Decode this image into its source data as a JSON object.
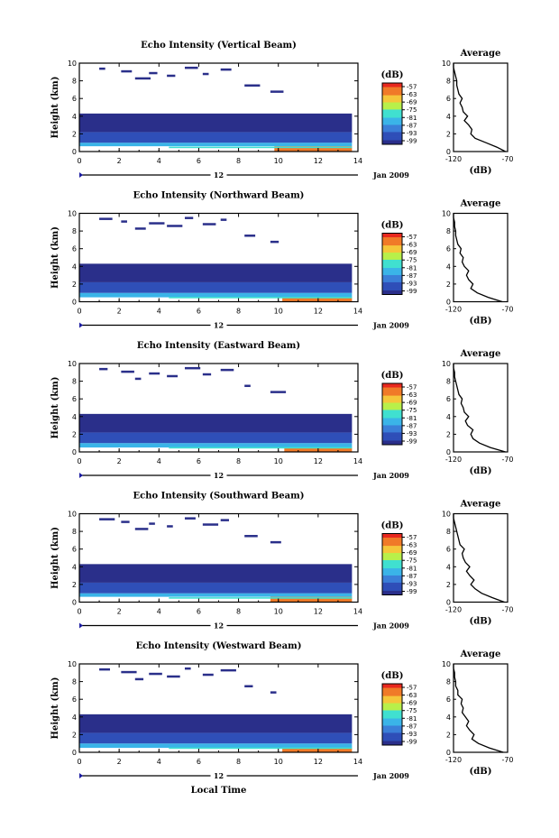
{
  "figure": {
    "xlabel": "Local Time",
    "date_label": "Jan 2009",
    "day_label": "12",
    "cbar_label": "(dB)",
    "avg_title": "Average",
    "avg_xlabel": "(dB)"
  },
  "chart_data": [
    {
      "type": "heatmap",
      "title": "Echo Intensity (Vertical Beam)",
      "ylabel": "Height (km)",
      "xlim": [
        0,
        14
      ],
      "ylim": [
        0,
        10
      ],
      "xticks": [
        0,
        2,
        4,
        6,
        8,
        10,
        12,
        14
      ],
      "yticks": [
        0,
        2,
        4,
        6,
        8,
        10
      ],
      "colorbar": {
        "unit": "dB",
        "ticks": [
          -57,
          -63,
          -69,
          -75,
          -81,
          -87,
          -93,
          -99
        ]
      },
      "layers": [
        {
          "h0": 0.0,
          "h1": 0.6,
          "level": -63,
          "t0": 9.8,
          "t1": 13.7
        },
        {
          "h0": 0.6,
          "h1": 1.0,
          "level": -81,
          "t0": 0,
          "t1": 13.7
        },
        {
          "h0": 1.0,
          "h1": 2.2,
          "level": -93,
          "t0": 0,
          "t1": 13.7
        },
        {
          "h0": 2.2,
          "h1": 4.3,
          "level": -99,
          "t0": 0,
          "t1": 13.7
        }
      ],
      "average": {
        "xlim": [
          -120,
          -70
        ],
        "xticks": [
          -120,
          -70
        ],
        "height": [
          0,
          0.5,
          1,
          1.5,
          2,
          2.5,
          3,
          3.5,
          4,
          4.5,
          5,
          5.5,
          6,
          6.5,
          7,
          7.5,
          8,
          8.5,
          9,
          9.5,
          10
        ],
        "value": [
          -72,
          -80,
          -90,
          -100,
          -104,
          -103,
          -106,
          -110,
          -107,
          -111,
          -112,
          -114,
          -112,
          -115,
          -116,
          -117,
          -117,
          -118,
          -119,
          -120,
          -120
        ]
      }
    },
    {
      "type": "heatmap",
      "title": "Echo Intensity (Northward Beam)",
      "ylabel": "Height (km)",
      "xlim": [
        0,
        14
      ],
      "ylim": [
        0,
        10
      ],
      "xticks": [
        0,
        2,
        4,
        6,
        8,
        10,
        12,
        14
      ],
      "yticks": [
        0,
        2,
        4,
        6,
        8,
        10
      ],
      "colorbar": {
        "unit": "dB",
        "ticks": [
          -57,
          -63,
          -69,
          -75,
          -81,
          -87,
          -93,
          -99
        ]
      },
      "layers": [
        {
          "h0": 0.0,
          "h1": 0.5,
          "level": -63,
          "t0": 10.2,
          "t1": 13.7
        },
        {
          "h0": 0.5,
          "h1": 1.0,
          "level": -81,
          "t0": 0,
          "t1": 13.7
        },
        {
          "h0": 1.0,
          "h1": 2.2,
          "level": -93,
          "t0": 0,
          "t1": 13.7
        },
        {
          "h0": 2.2,
          "h1": 4.3,
          "level": -99,
          "t0": 0,
          "t1": 13.7
        }
      ],
      "average": {
        "xlim": [
          -120,
          -70
        ],
        "xticks": [
          -120,
          -70
        ],
        "height": [
          0,
          0.5,
          1,
          1.5,
          2,
          2.5,
          3,
          3.5,
          4,
          4.5,
          5,
          5.5,
          6,
          6.5,
          7,
          7.5,
          8,
          8.5,
          9,
          9.5,
          10
        ],
        "value": [
          -75,
          -88,
          -98,
          -104,
          -102,
          -106,
          -108,
          -106,
          -110,
          -112,
          -111,
          -114,
          -113,
          -116,
          -117,
          -118,
          -118,
          -119,
          -119,
          -120,
          -120
        ]
      }
    },
    {
      "type": "heatmap",
      "title": "Echo Intensity (Eastward Beam)",
      "ylabel": "Height (km)",
      "xlim": [
        0,
        14
      ],
      "ylim": [
        0,
        10
      ],
      "xticks": [
        0,
        2,
        4,
        6,
        8,
        10,
        12,
        14
      ],
      "yticks": [
        0,
        2,
        4,
        6,
        8,
        10
      ],
      "colorbar": {
        "unit": "dB",
        "ticks": [
          -57,
          -63,
          -69,
          -75,
          -81,
          -87,
          -93,
          -99
        ]
      },
      "layers": [
        {
          "h0": 0.0,
          "h1": 0.5,
          "level": -63,
          "t0": 10.3,
          "t1": 13.7
        },
        {
          "h0": 0.5,
          "h1": 1.0,
          "level": -81,
          "t0": 0,
          "t1": 13.7
        },
        {
          "h0": 1.0,
          "h1": 2.2,
          "level": -93,
          "t0": 0,
          "t1": 13.7
        },
        {
          "h0": 2.2,
          "h1": 4.3,
          "level": -99,
          "t0": 0,
          "t1": 13.7
        }
      ],
      "average": {
        "xlim": [
          -120,
          -70
        ],
        "xticks": [
          -120,
          -70
        ],
        "height": [
          0,
          0.5,
          1,
          1.5,
          2,
          2.5,
          3,
          3.5,
          4,
          4.5,
          5,
          5.5,
          6,
          6.5,
          7,
          7.5,
          8,
          8.5,
          9,
          9.5,
          10
        ],
        "value": [
          -72,
          -86,
          -96,
          -102,
          -104,
          -102,
          -107,
          -109,
          -106,
          -110,
          -111,
          -113,
          -112,
          -115,
          -116,
          -117,
          -118,
          -119,
          -119,
          -120,
          -120
        ]
      }
    },
    {
      "type": "heatmap",
      "title": "Echo Intensity (Southward Beam)",
      "ylabel": "Height (km)",
      "xlim": [
        0,
        14
      ],
      "ylim": [
        0,
        10
      ],
      "xticks": [
        0,
        2,
        4,
        6,
        8,
        10,
        12,
        14
      ],
      "yticks": [
        0,
        2,
        4,
        6,
        8,
        10
      ],
      "colorbar": {
        "unit": "dB",
        "ticks": [
          -57,
          -63,
          -69,
          -75,
          -81,
          -87,
          -93,
          -99
        ]
      },
      "layers": [
        {
          "h0": 0.0,
          "h1": 0.6,
          "level": -63,
          "t0": 9.6,
          "t1": 13.7
        },
        {
          "h0": 0.6,
          "h1": 1.0,
          "level": -81,
          "t0": 0,
          "t1": 13.7
        },
        {
          "h0": 1.0,
          "h1": 2.2,
          "level": -93,
          "t0": 0,
          "t1": 13.7
        },
        {
          "h0": 2.2,
          "h1": 4.3,
          "level": -99,
          "t0": 0,
          "t1": 13.7
        }
      ],
      "average": {
        "xlim": [
          -120,
          -70
        ],
        "xticks": [
          -120,
          -70
        ],
        "height": [
          0,
          0.5,
          1,
          1.5,
          2,
          2.5,
          3,
          3.5,
          4,
          4.5,
          5,
          5.5,
          6,
          6.5,
          7,
          7.5,
          8,
          8.5,
          9,
          9.5,
          10
        ],
        "value": [
          -73,
          -84,
          -94,
          -100,
          -104,
          -101,
          -105,
          -108,
          -105,
          -109,
          -111,
          -112,
          -110,
          -114,
          -115,
          -116,
          -117,
          -118,
          -119,
          -120,
          -120
        ]
      }
    },
    {
      "type": "heatmap",
      "title": "Echo Intensity (Westward Beam)",
      "ylabel": "Height (km)",
      "xlim": [
        0,
        14
      ],
      "ylim": [
        0,
        10
      ],
      "xticks": [
        0,
        2,
        4,
        6,
        8,
        10,
        12,
        14
      ],
      "yticks": [
        0,
        2,
        4,
        6,
        8,
        10
      ],
      "colorbar": {
        "unit": "dB",
        "ticks": [
          -57,
          -63,
          -69,
          -75,
          -81,
          -87,
          -93,
          -99
        ]
      },
      "layers": [
        {
          "h0": 0.0,
          "h1": 0.5,
          "level": -63,
          "t0": 10.2,
          "t1": 13.7
        },
        {
          "h0": 0.5,
          "h1": 1.0,
          "level": -81,
          "t0": 0,
          "t1": 13.7
        },
        {
          "h0": 1.0,
          "h1": 2.2,
          "level": -93,
          "t0": 0,
          "t1": 13.7
        },
        {
          "h0": 2.2,
          "h1": 4.3,
          "level": -99,
          "t0": 0,
          "t1": 13.7
        }
      ],
      "average": {
        "xlim": [
          -120,
          -70
        ],
        "xticks": [
          -120,
          -70
        ],
        "height": [
          0,
          0.5,
          1,
          1.5,
          2,
          2.5,
          3,
          3.5,
          4,
          4.5,
          5,
          5.5,
          6,
          6.5,
          7,
          7.5,
          8,
          8.5,
          9,
          9.5,
          10
        ],
        "value": [
          -74,
          -87,
          -97,
          -103,
          -101,
          -105,
          -108,
          -106,
          -109,
          -112,
          -111,
          -113,
          -112,
          -116,
          -116,
          -118,
          -118,
          -119,
          -119,
          -120,
          -120
        ]
      }
    }
  ],
  "colors": {
    "scale": [
      "#2a2f8a",
      "#2f4fb8",
      "#3a7fd8",
      "#3ab4e8",
      "#40e0d0",
      "#b8f04a",
      "#f5c63a",
      "#f07a28",
      "#e8281e"
    ]
  }
}
